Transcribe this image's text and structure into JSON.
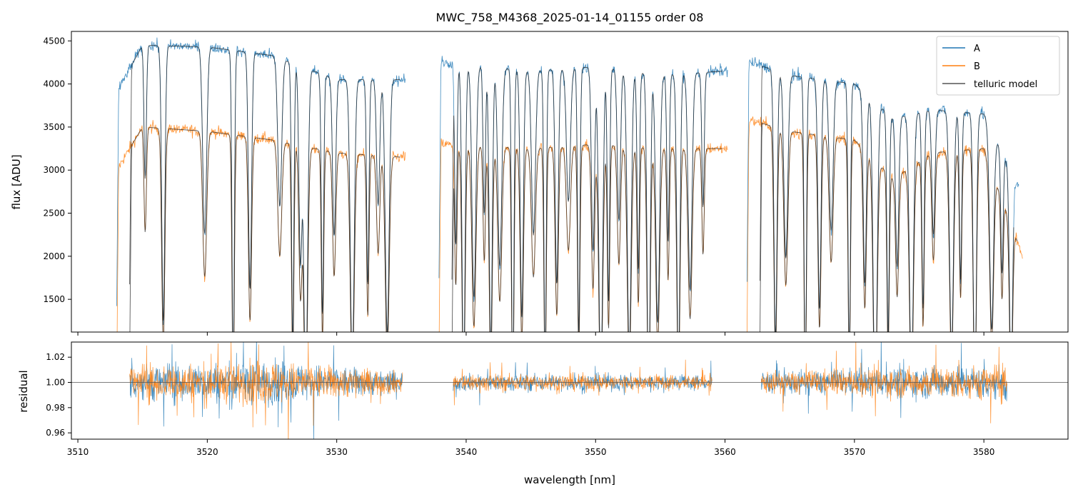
{
  "chart_data": [
    {
      "type": "line",
      "title": "MWC_758_M4368_2025-01-14_01155  order 08",
      "xlabel": "",
      "ylabel": "flux [ADU]",
      "xlim": [
        3509.5,
        3586.5
      ],
      "ylim": [
        1120,
        4610
      ],
      "yticks": [
        1500,
        2000,
        2500,
        3000,
        3500,
        4000,
        4500
      ],
      "xticks": [
        3510,
        3520,
        3530,
        3540,
        3550,
        3560,
        3570,
        3580
      ],
      "xtick_labels_shown": false,
      "legend": {
        "placement": "top-right",
        "entries": [
          "A",
          "B",
          "telluric model"
        ]
      },
      "series": [
        {
          "name": "A",
          "color": "#1f77b4",
          "segments": [
            [
              3513.0,
              3535.3
            ],
            [
              3537.9,
              3560.2
            ],
            [
              3561.7,
              3582.7
            ]
          ],
          "continuum_approx": [
            [
              3513,
              3900
            ],
            [
              3515,
              4450
            ],
            [
              3520,
              4430
            ],
            [
              3525,
              4330
            ],
            [
              3530,
              4050
            ],
            [
              3535,
              4050
            ],
            [
              3538,
              4250
            ],
            [
              3545,
              4150
            ],
            [
              3550,
              4200
            ],
            [
              3555,
              4100
            ],
            [
              3560,
              4150
            ],
            [
              3562,
              4250
            ],
            [
              3565,
              4100
            ],
            [
              3570,
              4000
            ],
            [
              3573,
              3600
            ],
            [
              3576,
              3700
            ],
            [
              3580,
              3650
            ],
            [
              3582.7,
              2800
            ]
          ]
        },
        {
          "name": "B",
          "color": "#ff7f0e",
          "segments": [
            [
              3513.0,
              3535.3
            ],
            [
              3537.9,
              3560.2
            ],
            [
              3561.7,
              3583.0
            ]
          ],
          "continuum_approx": [
            [
              3513,
              3000
            ],
            [
              3515,
              3500
            ],
            [
              3520,
              3450
            ],
            [
              3525,
              3350
            ],
            [
              3530,
              3200
            ],
            [
              3535,
              3150
            ],
            [
              3538,
              3300
            ],
            [
              3545,
              3250
            ],
            [
              3550,
              3300
            ],
            [
              3555,
              3250
            ],
            [
              3560,
              3250
            ],
            [
              3562,
              3580
            ],
            [
              3565,
              3450
            ],
            [
              3570,
              3350
            ],
            [
              3573,
              2900
            ],
            [
              3576,
              3200
            ],
            [
              3580,
              3250
            ],
            [
              3583.0,
              2000
            ]
          ]
        },
        {
          "name": "telluric model",
          "color": "#555555",
          "applies_to": [
            "A",
            "B"
          ]
        }
      ],
      "absorption_lines_nm": [
        3515.2,
        3516.6,
        3519.8,
        3522.0,
        3523.3,
        3525.6,
        3526.6,
        3527.2,
        3527.6,
        3528.9,
        3529.8,
        3531.2,
        3532.4,
        3533.2,
        3533.9,
        3539.2,
        3539.8,
        3540.6,
        3541.4,
        3541.9,
        3542.6,
        3543.6,
        3544.3,
        3545.2,
        3546.1,
        3547.0,
        3547.9,
        3548.7,
        3549.8,
        3550.4,
        3551.0,
        3551.8,
        3552.6,
        3553.3,
        3554.1,
        3554.8,
        3555.6,
        3556.4,
        3557.3,
        3558.3,
        3563.9,
        3564.7,
        3566.2,
        3567.3,
        3568.2,
        3569.6,
        3570.8,
        3571.6,
        3572.6,
        3573.3,
        3574.4,
        3575.3,
        3576.1,
        3577.5,
        3578.2,
        3579.3,
        3580.6,
        3581.4,
        3582.1
      ]
    },
    {
      "type": "line",
      "title": "",
      "xlabel": "wavelength [nm]",
      "ylabel": "residual",
      "xlim": [
        3509.5,
        3586.5
      ],
      "ylim": [
        0.955,
        1.032
      ],
      "yticks": [
        0.96,
        0.98,
        1.0,
        1.02
      ],
      "ytick_labels": [
        "0.96",
        "0.98",
        "1.00",
        "1.02"
      ],
      "xticks": [
        3510,
        3520,
        3530,
        3540,
        3550,
        3560,
        3570,
        3580
      ],
      "reference_line": 1.0,
      "series": [
        {
          "name": "A",
          "color": "#1f77b4",
          "segments": [
            [
              3514.0,
              3535.1
            ],
            [
              3539.0,
              3559.0
            ],
            [
              3562.8,
              3581.8
            ]
          ],
          "scatter_approx": [
            [
              3514,
              0.025
            ],
            [
              3525,
              0.03
            ],
            [
              3535,
              0.015
            ],
            [
              3539,
              0.012
            ],
            [
              3550,
              0.012
            ],
            [
              3559,
              0.01
            ],
            [
              3563,
              0.015
            ],
            [
              3572,
              0.02
            ],
            [
              3581.8,
              0.025
            ]
          ]
        },
        {
          "name": "B",
          "color": "#ff7f0e",
          "segments": [
            [
              3514.0,
              3535.1
            ],
            [
              3539.0,
              3559.0
            ],
            [
              3562.8,
              3581.8
            ]
          ],
          "scatter_approx": [
            [
              3514,
              0.025
            ],
            [
              3525,
              0.03
            ],
            [
              3535,
              0.015
            ],
            [
              3539,
              0.012
            ],
            [
              3550,
              0.012
            ],
            [
              3559,
              0.01
            ],
            [
              3563,
              0.015
            ],
            [
              3572,
              0.02
            ],
            [
              3581.8,
              0.025
            ]
          ]
        }
      ]
    }
  ]
}
